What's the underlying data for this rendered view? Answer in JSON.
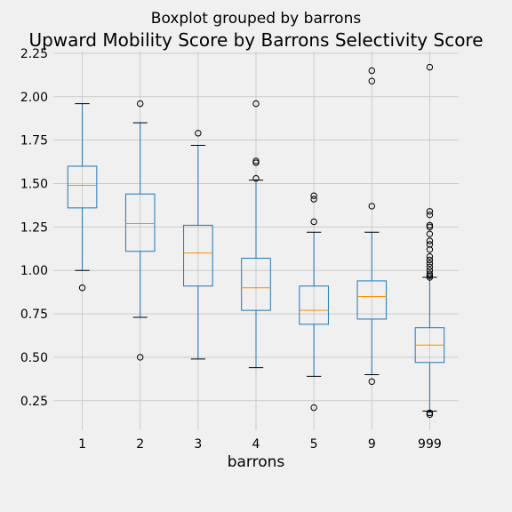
{
  "chart_data": {
    "type": "boxplot",
    "suptitle": "Boxplot grouped by barrons",
    "title": "Upward Mobility Score by Barrons Selectivity Score",
    "xlabel": "barrons",
    "ylabel": "",
    "categories": [
      "1",
      "2",
      "3",
      "4",
      "5",
      "9",
      "999"
    ],
    "ylim": [
      0.08,
      2.26
    ],
    "yticks": [
      0.25,
      0.5,
      0.75,
      1.0,
      1.25,
      1.5,
      1.75,
      2.0,
      2.25
    ],
    "ytick_labels": [
      "0.25",
      "0.50",
      "0.75",
      "1.00",
      "1.25",
      "1.50",
      "1.75",
      "2.00",
      "2.25"
    ],
    "grid": true,
    "box_color": "#1f77b4",
    "median_color": "#ff8c00",
    "background_color": "#f0f0f0",
    "grid_color": "#cbcbcb",
    "boxes": [
      {
        "category": "1",
        "whisker_low": 1.0,
        "q1": 1.36,
        "median": 1.49,
        "q3": 1.6,
        "whisker_high": 1.96,
        "outliers": [
          0.9
        ]
      },
      {
        "category": "2",
        "whisker_low": 0.73,
        "q1": 1.11,
        "median": 1.27,
        "q3": 1.44,
        "whisker_high": 1.85,
        "outliers": [
          1.96,
          0.5
        ]
      },
      {
        "category": "3",
        "whisker_low": 0.49,
        "q1": 0.91,
        "median": 1.1,
        "q3": 1.26,
        "whisker_high": 1.72,
        "outliers": [
          1.79
        ]
      },
      {
        "category": "4",
        "whisker_low": 0.44,
        "q1": 0.77,
        "median": 0.9,
        "q3": 1.07,
        "whisker_high": 1.52,
        "outliers": [
          1.96,
          1.63,
          1.62,
          1.53
        ]
      },
      {
        "category": "5",
        "whisker_low": 0.39,
        "q1": 0.69,
        "median": 0.77,
        "q3": 0.91,
        "whisker_high": 1.22,
        "outliers": [
          1.43,
          1.41,
          1.28,
          0.21
        ]
      },
      {
        "category": "9",
        "whisker_low": 0.4,
        "q1": 0.72,
        "median": 0.85,
        "q3": 0.94,
        "whisker_high": 1.22,
        "outliers": [
          2.15,
          2.09,
          1.37,
          0.36
        ]
      },
      {
        "category": "999",
        "whisker_low": 0.19,
        "q1": 0.47,
        "median": 0.57,
        "q3": 0.67,
        "whisker_high": 0.96,
        "outliers": [
          2.17,
          1.34,
          1.32,
          1.26,
          1.25,
          1.21,
          1.17,
          1.15,
          1.12,
          1.08,
          1.06,
          1.04,
          1.02,
          1.0,
          0.98,
          0.97,
          0.96,
          0.18,
          0.17
        ]
      }
    ]
  }
}
